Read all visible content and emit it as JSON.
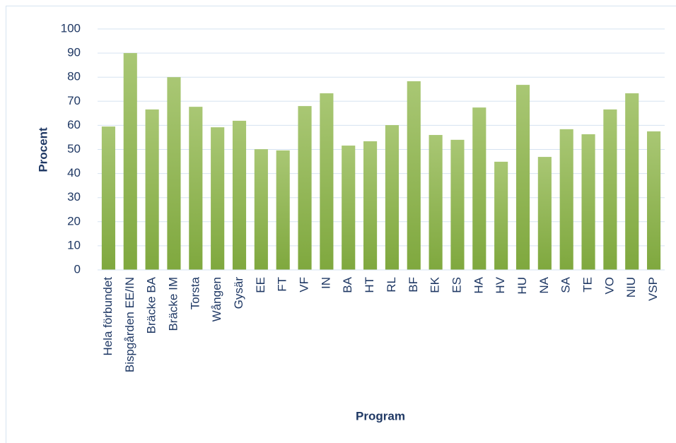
{
  "chart_data": {
    "type": "bar",
    "x_label": "Program",
    "y_label": "Procent",
    "categories": [
      "Hela förbundet",
      "Bispgården EE/IN",
      "Bräcke BA",
      "Bräcke IM",
      "Torsta",
      "Wången",
      "Gysär",
      "EE",
      "FT",
      "VF",
      "IN",
      "BA",
      "HT",
      "RL",
      "BF",
      "EK",
      "ES",
      "HA",
      "HV",
      "HU",
      "NA",
      "SA",
      "TE",
      "VO",
      "NIU",
      "VSP"
    ],
    "values": [
      59.5,
      90,
      66.6,
      80,
      67.7,
      59.2,
      61.9,
      50.1,
      49.6,
      68,
      73.3,
      51.6,
      53.4,
      60.1,
      78.3,
      56,
      54,
      67.4,
      44.9,
      76.8,
      46.9,
      58.4,
      56.3,
      66.6,
      73.3,
      57.5
    ],
    "color": "#8db151",
    "ylim": [
      0,
      100
    ],
    "yticks": [
      0,
      10,
      20,
      30,
      40,
      50,
      60,
      70,
      80,
      90,
      100
    ],
    "grid": true
  }
}
